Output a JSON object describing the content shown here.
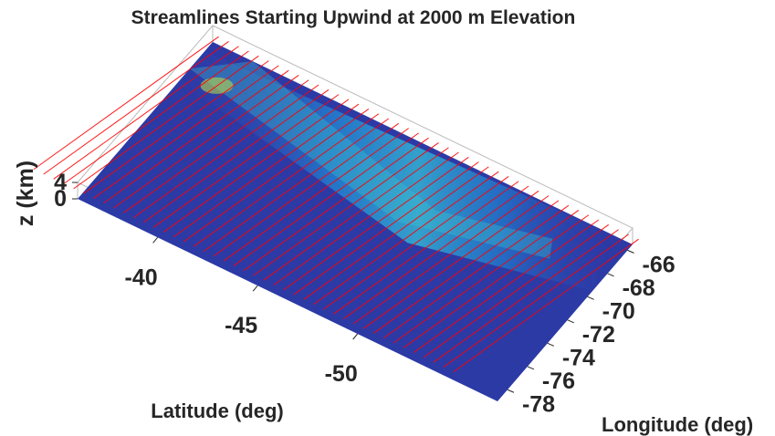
{
  "chart_data": {
    "type": "surface",
    "title": "Streamlines Starting Upwind at 2000 m Elevation",
    "x_label": "Latitude (deg)",
    "y_label": "Longitude (deg)",
    "z_label": "z (km)",
    "xlim": [
      -57,
      -36
    ],
    "xticks": [
      -50,
      -45,
      -40
    ],
    "ylim": [
      -79,
      -65.5
    ],
    "yticks": [
      -78,
      -76,
      -74,
      -72,
      -70,
      -68,
      -66
    ],
    "zlim": [
      0,
      4
    ],
    "zticks": [
      0,
      4
    ],
    "streamline_color": "#ff0000"
  }
}
